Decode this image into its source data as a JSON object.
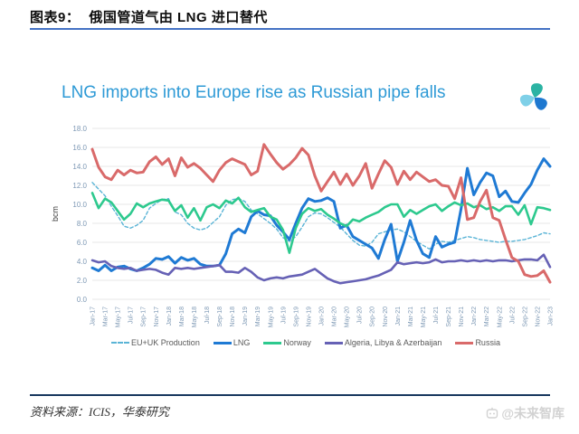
{
  "header": {
    "figure_label": "图表9：",
    "figure_title": "俄国管道气由 LNG 进口替代"
  },
  "footer": {
    "source": "资料来源：ICIS，华泰研究",
    "watermark": "@未来智库"
  },
  "colors": {
    "header_rule": "#4472c4",
    "footer_rule": "#17375e",
    "chart_title": "#2e9ad6",
    "axis_label": "#7e99b5",
    "gridline": "#e7e7e7",
    "legend_text": "#595959",
    "watermark": "#d2d2d2"
  },
  "chart_data": {
    "type": "line",
    "title": "LNG imports into Europe rise as Russian pipe falls",
    "ylabel": "bcm",
    "ylim": [
      0,
      18
    ],
    "ytick_step": 2,
    "grid": "horizontal",
    "legend_position": "bottom",
    "x_frequency": "monthly",
    "x_start": "Jan-17",
    "x_end": "Jan-23",
    "x_tick_labels": [
      "Jan-17",
      "Mar-17",
      "May-17",
      "Jul-17",
      "Sep-17",
      "Nov-17",
      "Jan-18",
      "Mar-18",
      "May-18",
      "Jul-18",
      "Sep-18",
      "Nov-18",
      "Jan-19",
      "Mar-19",
      "May-19",
      "Jul-19",
      "Sep-19",
      "Nov-19",
      "Jan-20",
      "Mar-20",
      "May-20",
      "Jul-20",
      "Sep-20",
      "Nov-20",
      "Jan-21",
      "Mar-21",
      "May-21",
      "Jul-21",
      "Sep-21",
      "Nov-21",
      "Jan-22",
      "Mar-22",
      "May-22",
      "Jul-22",
      "Sep-22",
      "Nov-22",
      "Jan-23"
    ],
    "series": [
      {
        "id": "eu_uk_production",
        "name": "EU+UK Production",
        "color": "#5ab4d6",
        "dash": true,
        "values": [
          12.3,
          11.6,
          10.9,
          9.8,
          8.8,
          7.7,
          7.5,
          7.8,
          8.3,
          9.6,
          10.1,
          10.5,
          10.6,
          9.2,
          8.9,
          8.0,
          7.5,
          7.3,
          7.5,
          8.1,
          8.7,
          9.9,
          10.5,
          10.6,
          10.3,
          9.4,
          9.0,
          8.5,
          8.0,
          7.4,
          6.5,
          6.1,
          6.6,
          7.6,
          8.7,
          9.1,
          9.0,
          8.6,
          8.1,
          7.6,
          6.9,
          6.2,
          5.7,
          5.6,
          6.0,
          6.9,
          7.1,
          7.3,
          7.4,
          7.1,
          6.6,
          6.1,
          5.7,
          5.3,
          5.8,
          6.1,
          6.0,
          6.2,
          6.4,
          6.6,
          6.5,
          6.3,
          6.2,
          6.1,
          6.0,
          6.1,
          6.1,
          6.2,
          6.3,
          6.5,
          6.7,
          7.0,
          6.9
        ]
      },
      {
        "id": "lng",
        "name": "LNG",
        "color": "#1f7ad4",
        "dash": false,
        "values": [
          3.3,
          3.0,
          3.6,
          3.0,
          3.4,
          3.5,
          3.2,
          3.0,
          3.3,
          3.7,
          4.3,
          4.2,
          4.5,
          3.8,
          4.4,
          4.1,
          4.3,
          3.7,
          3.5,
          3.5,
          3.6,
          4.8,
          6.9,
          7.4,
          7.0,
          8.7,
          9.3,
          8.9,
          8.8,
          7.8,
          7.1,
          6.3,
          8.0,
          9.6,
          10.6,
          10.3,
          10.4,
          10.7,
          10.3,
          7.5,
          7.8,
          6.6,
          6.2,
          5.8,
          5.4,
          4.3,
          6.3,
          7.9,
          4.0,
          6.0,
          8.3,
          6.2,
          4.8,
          4.4,
          6.6,
          5.5,
          5.8,
          6.0,
          9.5,
          13.8,
          11.0,
          12.3,
          13.3,
          13.0,
          10.8,
          11.4,
          10.3,
          10.2,
          11.2,
          12.1,
          13.6,
          14.8,
          14.0
        ]
      },
      {
        "id": "norway",
        "name": "Norway",
        "color": "#2dc98e",
        "dash": false,
        "values": [
          11.2,
          9.6,
          10.6,
          10.2,
          9.3,
          8.4,
          9.0,
          10.1,
          9.7,
          10.1,
          10.3,
          10.5,
          10.4,
          9.3,
          9.9,
          8.6,
          9.6,
          8.3,
          9.7,
          10.0,
          9.6,
          10.4,
          10.1,
          10.7,
          9.7,
          9.2,
          9.4,
          9.6,
          8.7,
          8.4,
          7.3,
          4.9,
          7.5,
          9.0,
          9.6,
          9.3,
          9.5,
          8.9,
          8.5,
          8.0,
          7.7,
          8.4,
          8.2,
          8.6,
          8.9,
          9.2,
          9.7,
          10.0,
          10.0,
          8.7,
          9.4,
          9.0,
          9.4,
          9.8,
          10.0,
          9.3,
          9.8,
          10.2,
          9.9,
          10.1,
          9.7,
          9.9,
          9.5,
          9.7,
          9.3,
          9.8,
          9.8,
          8.9,
          9.9,
          7.9,
          9.7,
          9.6,
          9.4
        ]
      },
      {
        "id": "algeria_libya_azerbaijan",
        "name": "Algeria, Libya & Azerbaijan",
        "color": "#6661b5",
        "dash": false,
        "values": [
          4.1,
          3.9,
          4.0,
          3.5,
          3.3,
          3.2,
          3.3,
          3.0,
          3.1,
          3.2,
          3.1,
          2.8,
          2.6,
          3.3,
          3.2,
          3.3,
          3.2,
          3.3,
          3.4,
          3.5,
          3.6,
          2.9,
          2.9,
          2.8,
          3.3,
          2.9,
          2.3,
          2.0,
          2.2,
          2.3,
          2.2,
          2.4,
          2.5,
          2.6,
          2.9,
          3.2,
          2.7,
          2.2,
          1.9,
          1.7,
          1.8,
          1.9,
          2.0,
          2.1,
          2.3,
          2.5,
          2.8,
          3.1,
          3.9,
          3.7,
          3.8,
          3.9,
          3.8,
          3.9,
          4.2,
          3.9,
          4.0,
          4.0,
          4.1,
          4.0,
          4.1,
          4.0,
          4.1,
          4.0,
          4.1,
          4.1,
          4.0,
          4.1,
          4.2,
          4.2,
          4.1,
          4.7,
          3.4
        ]
      },
      {
        "id": "russia",
        "name": "Russia",
        "color": "#d96a6a",
        "dash": false,
        "values": [
          15.8,
          13.9,
          12.9,
          12.6,
          13.6,
          13.1,
          13.6,
          13.3,
          13.4,
          14.5,
          15.0,
          14.2,
          14.8,
          13.0,
          14.9,
          13.9,
          14.3,
          13.8,
          13.1,
          12.4,
          13.6,
          14.4,
          14.8,
          14.5,
          14.2,
          13.1,
          13.5,
          16.3,
          15.3,
          14.4,
          13.7,
          14.2,
          14.9,
          15.9,
          15.2,
          13.0,
          11.4,
          12.4,
          13.4,
          12.1,
          13.2,
          12.0,
          13.0,
          14.3,
          11.7,
          13.2,
          14.6,
          13.9,
          12.1,
          13.5,
          12.6,
          13.4,
          12.9,
          12.4,
          12.6,
          12.0,
          11.9,
          10.6,
          12.8,
          8.4,
          8.6,
          10.3,
          11.5,
          8.6,
          8.3,
          6.3,
          4.4,
          4.0,
          2.6,
          2.4,
          2.5,
          3.0,
          1.8
        ]
      }
    ]
  }
}
